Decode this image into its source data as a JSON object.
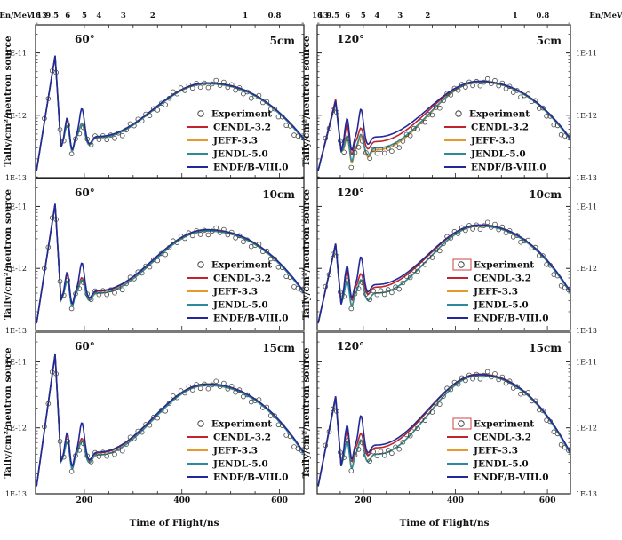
{
  "figure": {
    "energy_axis_label": "En/MeV",
    "energy_ticks": [
      "16",
      "13",
      "9.5",
      "6",
      "5",
      "4",
      "3",
      "2",
      "1",
      "0.8"
    ],
    "x_axis_label": "Time of Flight/ns",
    "x_ticks": [
      "200",
      "400",
      "600"
    ],
    "y_axis_label": "Tally/cm²/neutron source",
    "y_ticks": [
      "1E-11",
      "1E-12",
      "1E-13"
    ]
  },
  "legend": {
    "experiment": "Experiment",
    "series": [
      "CENDL-3.2",
      "JEFF-3.3",
      "JENDL-5.0",
      "ENDF/B-VIII.0"
    ]
  },
  "colors": {
    "CENDL-3.2": "#c0242d",
    "JEFF-3.3": "#e59b2c",
    "JENDL-5.0": "#2a8c9a",
    "ENDF/B-VIII.0": "#22289a",
    "experiment": "#444444",
    "frame": "#222222",
    "boxed_marker": "#d24040"
  },
  "chart_data": [
    {
      "type": "line",
      "angle": "60°",
      "thickness": "5cm",
      "xlim": [
        100,
        650
      ],
      "ylim": [
        1e-13,
        3e-11
      ],
      "yscale": "log",
      "xlabel": "Time of Flight/ns",
      "ylabel": "Tally/cm²/neutron source",
      "secondary_x": "En/MeV",
      "series": [
        {
          "name": "CENDL-3.2",
          "peak": 9e-12,
          "mid": 4.5e-13,
          "broad_peak": 3.3e-12,
          "end": 4e-13
        },
        {
          "name": "JEFF-3.3",
          "peak": 9e-12,
          "mid": 4.4e-13,
          "broad_peak": 3.2e-12,
          "end": 4e-13
        },
        {
          "name": "JENDL-5.0",
          "peak": 9e-12,
          "mid": 4.4e-13,
          "broad_peak": 3.2e-12,
          "end": 4e-13
        },
        {
          "name": "ENDF/B-VIII.0",
          "peak": 9e-12,
          "mid": 4.6e-13,
          "broad_peak": 3.3e-12,
          "end": 4.2e-13
        },
        {
          "name": "Experiment",
          "peak": 9e-12,
          "mid": 4.3e-13,
          "broad_peak": 3.2e-12,
          "end": 3.5e-13
        }
      ]
    },
    {
      "type": "line",
      "angle": "120°",
      "thickness": "5cm",
      "xlim": [
        100,
        650
      ],
      "ylim": [
        1e-13,
        3e-11
      ],
      "yscale": "log",
      "xlabel": "Time of Flight/ns",
      "ylabel": "Tally/cm²/neutron source",
      "secondary_x": "En/MeV",
      "series": [
        {
          "name": "CENDL-3.2",
          "peak": 1.8e-12,
          "mid": 3.8e-13,
          "broad_peak": 3.5e-12,
          "end": 4e-13
        },
        {
          "name": "JEFF-3.3",
          "peak": 1.6e-12,
          "mid": 2.8e-13,
          "broad_peak": 3.4e-12,
          "end": 4e-13
        },
        {
          "name": "JENDL-5.0",
          "peak": 1.6e-12,
          "mid": 3e-13,
          "broad_peak": 3.4e-12,
          "end": 4e-13
        },
        {
          "name": "ENDF/B-VIII.0",
          "peak": 1.7e-12,
          "mid": 4.5e-13,
          "broad_peak": 3.5e-12,
          "end": 4.2e-13
        },
        {
          "name": "Experiment",
          "peak": 1.6e-12,
          "mid": 2.6e-13,
          "broad_peak": 3.4e-12,
          "end": 3.5e-13
        }
      ]
    },
    {
      "type": "line",
      "angle": "60°",
      "thickness": "10cm",
      "xlim": [
        100,
        650
      ],
      "ylim": [
        1e-13,
        3e-11
      ],
      "yscale": "log",
      "xlabel": "Time of Flight/ns",
      "ylabel": "Tally/cm²/neutron source",
      "secondary_x": "En/MeV",
      "series": [
        {
          "name": "CENDL-3.2",
          "peak": 1.1e-11,
          "mid": 4.3e-13,
          "broad_peak": 4.2e-12,
          "end": 4e-13
        },
        {
          "name": "JEFF-3.3",
          "peak": 1.1e-11,
          "mid": 4e-13,
          "broad_peak": 4e-12,
          "end": 4e-13
        },
        {
          "name": "JENDL-5.0",
          "peak": 1.1e-11,
          "mid": 4e-13,
          "broad_peak": 4e-12,
          "end": 4e-13
        },
        {
          "name": "ENDF/B-VIII.0",
          "peak": 1.1e-11,
          "mid": 4.4e-13,
          "broad_peak": 4.2e-12,
          "end": 4.2e-13
        },
        {
          "name": "Experiment",
          "peak": 1.2e-11,
          "mid": 4e-13,
          "broad_peak": 4e-12,
          "end": 3.5e-13
        }
      ]
    },
    {
      "type": "line",
      "angle": "120°",
      "thickness": "10cm",
      "xlim": [
        100,
        650
      ],
      "ylim": [
        1e-13,
        3e-11
      ],
      "yscale": "log",
      "xlabel": "Time of Flight/ns",
      "ylabel": "Tally/cm²/neutron source",
      "secondary_x": "En/MeV",
      "series": [
        {
          "name": "CENDL-3.2",
          "peak": 2.5e-12,
          "mid": 5e-13,
          "broad_peak": 5e-12,
          "end": 4e-13
        },
        {
          "name": "JEFF-3.3",
          "peak": 2.4e-12,
          "mid": 4e-13,
          "broad_peak": 4.8e-12,
          "end": 4e-13
        },
        {
          "name": "JENDL-5.0",
          "peak": 2.4e-12,
          "mid": 4e-13,
          "broad_peak": 4.8e-12,
          "end": 4e-13
        },
        {
          "name": "ENDF/B-VIII.0",
          "peak": 2.5e-12,
          "mid": 5.5e-13,
          "broad_peak": 5e-12,
          "end": 4.2e-13
        },
        {
          "name": "Experiment",
          "peak": 2.4e-12,
          "mid": 4e-13,
          "broad_peak": 4.9e-12,
          "end": 3.5e-13
        }
      ]
    },
    {
      "type": "line",
      "angle": "60°",
      "thickness": "15cm",
      "xlim": [
        100,
        650
      ],
      "ylim": [
        1e-13,
        3e-11
      ],
      "yscale": "log",
      "xlabel": "Time of Flight/ns",
      "ylabel": "Tally/cm²/neutron source",
      "secondary_x": "En/MeV",
      "series": [
        {
          "name": "CENDL-3.2",
          "peak": 1.3e-11,
          "mid": 4.2e-13,
          "broad_peak": 4.6e-12,
          "end": 4e-13
        },
        {
          "name": "JEFF-3.3",
          "peak": 1.3e-11,
          "mid": 3.9e-13,
          "broad_peak": 4.4e-12,
          "end": 4e-13
        },
        {
          "name": "JENDL-5.0",
          "peak": 1.3e-11,
          "mid": 3.9e-13,
          "broad_peak": 4.4e-12,
          "end": 4e-13
        },
        {
          "name": "ENDF/B-VIII.0",
          "peak": 1.3e-11,
          "mid": 4.3e-13,
          "broad_peak": 4.6e-12,
          "end": 4.2e-13
        },
        {
          "name": "Experiment",
          "peak": 1.3e-11,
          "mid": 3.9e-13,
          "broad_peak": 4.5e-12,
          "end": 3.5e-13
        }
      ]
    },
    {
      "type": "line",
      "angle": "120°",
      "thickness": "15cm",
      "xlim": [
        100,
        650
      ],
      "ylim": [
        1e-13,
        3e-11
      ],
      "yscale": "log",
      "xlabel": "Time of Flight/ns",
      "ylabel": "Tally/cm²/neutron source",
      "secondary_x": "En/MeV",
      "series": [
        {
          "name": "CENDL-3.2",
          "peak": 3e-12,
          "mid": 5e-13,
          "broad_peak": 6.5e-12,
          "end": 4e-13
        },
        {
          "name": "JEFF-3.3",
          "peak": 2.8e-12,
          "mid": 4e-13,
          "broad_peak": 6.2e-12,
          "end": 4e-13
        },
        {
          "name": "JENDL-5.0",
          "peak": 2.8e-12,
          "mid": 4e-13,
          "broad_peak": 6.2e-12,
          "end": 4e-13
        },
        {
          "name": "ENDF/B-VIII.0",
          "peak": 3e-12,
          "mid": 5.5e-13,
          "broad_peak": 6.4e-12,
          "end": 4.2e-13
        },
        {
          "name": "Experiment",
          "peak": 2.8e-12,
          "mid": 4e-13,
          "broad_peak": 6.3e-12,
          "end": 3.5e-13
        }
      ]
    }
  ]
}
